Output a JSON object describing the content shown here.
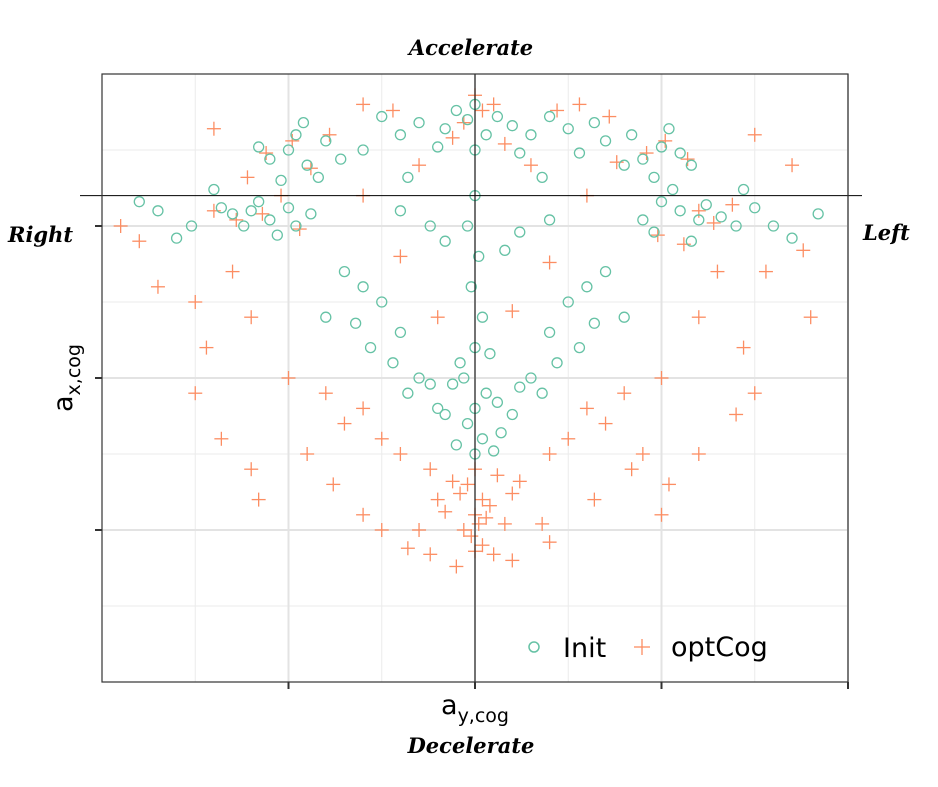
{
  "chart_data": {
    "type": "scatter",
    "x_label_main": "a",
    "x_label_sub": "y,cog",
    "y_label_main": "a",
    "y_label_sub": "x,cog",
    "annotations": {
      "top": "Accelerate",
      "bottom": "Decelerate",
      "left": "Right",
      "right": "Left"
    },
    "xlim": [
      -1.0,
      1.0
    ],
    "ylim": [
      -1.0,
      1.0
    ],
    "x_ticks": [
      -0.5,
      0.0,
      0.5,
      1.0
    ],
    "y_ticks": [
      0.5,
      0.0,
      -0.5
    ],
    "x_tick_labels": [],
    "y_tick_labels": [],
    "grid": true,
    "reference_lines": {
      "x": 0.0,
      "y": 0.6
    },
    "legend_position": "bottom-right",
    "series": [
      {
        "name": "Init",
        "marker": "open-circle",
        "color": "#66c2a5",
        "points": [
          [
            -0.55,
            0.72
          ],
          [
            -0.5,
            0.75
          ],
          [
            -0.45,
            0.7
          ],
          [
            -0.4,
            0.78
          ],
          [
            -0.48,
            0.8
          ],
          [
            -0.52,
            0.65
          ],
          [
            -0.42,
            0.66
          ],
          [
            -0.36,
            0.72
          ],
          [
            -0.58,
            0.76
          ],
          [
            -0.46,
            0.84
          ],
          [
            -0.6,
            0.55
          ],
          [
            -0.55,
            0.52
          ],
          [
            -0.5,
            0.56
          ],
          [
            -0.62,
            0.5
          ],
          [
            -0.58,
            0.58
          ],
          [
            -0.48,
            0.5
          ],
          [
            -0.65,
            0.54
          ],
          [
            -0.53,
            0.47
          ],
          [
            -0.44,
            0.54
          ],
          [
            -0.68,
            0.56
          ],
          [
            0.45,
            0.72
          ],
          [
            0.5,
            0.76
          ],
          [
            0.4,
            0.7
          ],
          [
            0.55,
            0.74
          ],
          [
            0.42,
            0.8
          ],
          [
            0.35,
            0.78
          ],
          [
            0.48,
            0.66
          ],
          [
            0.58,
            0.7
          ],
          [
            0.32,
            0.84
          ],
          [
            0.52,
            0.82
          ],
          [
            0.55,
            0.55
          ],
          [
            0.6,
            0.52
          ],
          [
            0.5,
            0.58
          ],
          [
            0.62,
            0.57
          ],
          [
            0.48,
            0.48
          ],
          [
            0.66,
            0.53
          ],
          [
            0.58,
            0.45
          ],
          [
            0.7,
            0.5
          ],
          [
            0.45,
            0.52
          ],
          [
            0.53,
            0.62
          ],
          [
            0.0,
            0.9
          ],
          [
            -0.02,
            0.85
          ],
          [
            0.03,
            0.8
          ],
          [
            -0.05,
            0.88
          ],
          [
            0.06,
            0.86
          ],
          [
            -0.08,
            0.82
          ],
          [
            0.1,
            0.83
          ],
          [
            0.0,
            0.75
          ],
          [
            -0.1,
            0.76
          ],
          [
            0.12,
            0.74
          ],
          [
            -0.25,
            0.86
          ],
          [
            -0.2,
            0.8
          ],
          [
            -0.15,
            0.84
          ],
          [
            0.2,
            0.86
          ],
          [
            0.25,
            0.82
          ],
          [
            0.15,
            0.8
          ],
          [
            -0.3,
            0.75
          ],
          [
            0.28,
            0.74
          ],
          [
            -0.18,
            0.66
          ],
          [
            0.18,
            0.66
          ],
          [
            0.0,
            0.6
          ],
          [
            -0.02,
            0.5
          ],
          [
            0.01,
            0.4
          ],
          [
            -0.01,
            0.3
          ],
          [
            0.02,
            0.2
          ],
          [
            0.0,
            0.1
          ],
          [
            -0.03,
            0.0
          ],
          [
            0.03,
            -0.05
          ],
          [
            0.0,
            -0.1
          ],
          [
            -0.02,
            -0.15
          ],
          [
            0.02,
            -0.2
          ],
          [
            0.0,
            -0.25
          ],
          [
            -0.04,
            0.05
          ],
          [
            0.04,
            0.08
          ],
          [
            -0.06,
            -0.02
          ],
          [
            0.06,
            -0.08
          ],
          [
            -0.08,
            -0.12
          ],
          [
            0.07,
            -0.18
          ],
          [
            -0.05,
            -0.22
          ],
          [
            0.05,
            -0.24
          ],
          [
            -0.3,
            0.3
          ],
          [
            -0.25,
            0.25
          ],
          [
            -0.2,
            0.15
          ],
          [
            -0.35,
            0.35
          ],
          [
            -0.28,
            0.1
          ],
          [
            -0.22,
            0.05
          ],
          [
            -0.15,
            0.0
          ],
          [
            -0.4,
            0.2
          ],
          [
            -0.32,
            0.18
          ],
          [
            -0.18,
            -0.05
          ],
          [
            0.3,
            0.3
          ],
          [
            0.25,
            0.25
          ],
          [
            0.2,
            0.15
          ],
          [
            0.35,
            0.35
          ],
          [
            0.28,
            0.1
          ],
          [
            0.22,
            0.05
          ],
          [
            0.15,
            0.0
          ],
          [
            0.4,
            0.2
          ],
          [
            0.32,
            0.18
          ],
          [
            0.18,
            -0.05
          ],
          [
            -0.1,
            -0.1
          ],
          [
            0.1,
            -0.12
          ],
          [
            -0.12,
            -0.02
          ],
          [
            0.12,
            -0.03
          ],
          [
            -0.08,
            0.45
          ],
          [
            0.08,
            0.42
          ],
          [
            -0.12,
            0.5
          ],
          [
            0.12,
            0.48
          ],
          [
            -0.2,
            0.55
          ],
          [
            0.2,
            0.52
          ],
          [
            -0.85,
            0.55
          ],
          [
            -0.76,
            0.5
          ],
          [
            -0.7,
            0.62
          ],
          [
            -0.8,
            0.46
          ],
          [
            0.8,
            0.5
          ],
          [
            0.75,
            0.56
          ],
          [
            0.85,
            0.46
          ],
          [
            0.92,
            0.54
          ],
          [
            0.72,
            0.62
          ],
          [
            -0.9,
            0.58
          ]
        ]
      },
      {
        "name": "optCog",
        "marker": "plus",
        "color": "#fc8d62",
        "points": [
          [
            -0.56,
            0.74
          ],
          [
            -0.49,
            0.78
          ],
          [
            -0.44,
            0.69
          ],
          [
            -0.61,
            0.66
          ],
          [
            -0.39,
            0.8
          ],
          [
            -0.57,
            0.54
          ],
          [
            -0.64,
            0.52
          ],
          [
            -0.47,
            0.49
          ],
          [
            -0.7,
            0.55
          ],
          [
            -0.52,
            0.6
          ],
          [
            0.46,
            0.74
          ],
          [
            0.51,
            0.78
          ],
          [
            0.38,
            0.71
          ],
          [
            0.57,
            0.72
          ],
          [
            0.6,
            0.55
          ],
          [
            0.64,
            0.51
          ],
          [
            0.49,
            0.47
          ],
          [
            0.69,
            0.57
          ],
          [
            0.56,
            0.44
          ],
          [
            0.36,
            0.86
          ],
          [
            0.0,
            0.93
          ],
          [
            0.02,
            0.88
          ],
          [
            -0.03,
            0.84
          ],
          [
            0.05,
            0.9
          ],
          [
            -0.06,
            0.79
          ],
          [
            0.08,
            0.77
          ],
          [
            -0.22,
            0.88
          ],
          [
            0.22,
            0.88
          ],
          [
            -0.3,
            0.9
          ],
          [
            0.28,
            0.9
          ],
          [
            0.0,
            -0.3
          ],
          [
            -0.02,
            -0.35
          ],
          [
            0.02,
            -0.4
          ],
          [
            0.0,
            -0.45
          ],
          [
            -0.04,
            -0.38
          ],
          [
            0.04,
            -0.42
          ],
          [
            -0.06,
            -0.34
          ],
          [
            0.06,
            -0.32
          ],
          [
            0.01,
            -0.48
          ],
          [
            -0.01,
            -0.52
          ],
          [
            0.02,
            -0.55
          ],
          [
            -0.03,
            -0.5
          ],
          [
            0.03,
            -0.46
          ],
          [
            -0.08,
            -0.44
          ],
          [
            0.08,
            -0.48
          ],
          [
            -0.1,
            -0.4
          ],
          [
            0.1,
            -0.38
          ],
          [
            -0.12,
            -0.3
          ],
          [
            0.12,
            -0.34
          ],
          [
            0.0,
            -0.57
          ],
          [
            -0.25,
            -0.2
          ],
          [
            -0.3,
            -0.1
          ],
          [
            -0.35,
            -0.15
          ],
          [
            -0.2,
            -0.25
          ],
          [
            -0.4,
            -0.05
          ],
          [
            0.25,
            -0.2
          ],
          [
            0.3,
            -0.1
          ],
          [
            0.35,
            -0.15
          ],
          [
            0.2,
            -0.25
          ],
          [
            0.4,
            -0.05
          ],
          [
            -0.45,
            -0.25
          ],
          [
            0.45,
            -0.25
          ],
          [
            -0.5,
            0.0
          ],
          [
            0.5,
            0.0
          ],
          [
            -0.6,
            0.2
          ],
          [
            0.6,
            0.2
          ],
          [
            -0.65,
            0.35
          ],
          [
            0.65,
            0.35
          ],
          [
            -0.72,
            0.1
          ],
          [
            0.72,
            0.1
          ],
          [
            -0.75,
            -0.05
          ],
          [
            0.75,
            -0.05
          ],
          [
            -0.68,
            -0.2
          ],
          [
            0.7,
            -0.12
          ],
          [
            -0.38,
            -0.35
          ],
          [
            0.42,
            -0.3
          ],
          [
            -0.3,
            -0.45
          ],
          [
            0.32,
            -0.4
          ],
          [
            -0.15,
            -0.5
          ],
          [
            0.18,
            -0.48
          ],
          [
            -0.9,
            0.45
          ],
          [
            0.88,
            0.42
          ],
          [
            -0.95,
            0.5
          ],
          [
            0.9,
            0.2
          ],
          [
            -0.75,
            0.25
          ],
          [
            0.78,
            0.35
          ],
          [
            0.6,
            -0.25
          ],
          [
            -0.6,
            -0.3
          ],
          [
            0.85,
            0.7
          ],
          [
            -0.7,
            0.82
          ],
          [
            -0.12,
            -0.58
          ],
          [
            0.1,
            -0.6
          ],
          [
            -0.05,
            -0.62
          ],
          [
            0.05,
            -0.58
          ],
          [
            -0.18,
            -0.56
          ],
          [
            0.2,
            -0.54
          ],
          [
            -0.25,
            -0.5
          ],
          [
            0.5,
            -0.45
          ],
          [
            -0.58,
            -0.4
          ],
          [
            0.52,
            -0.35
          ],
          [
            -0.3,
            0.6
          ],
          [
            0.3,
            0.6
          ],
          [
            -0.15,
            0.7
          ],
          [
            0.15,
            0.7
          ],
          [
            -0.1,
            0.2
          ],
          [
            0.1,
            0.22
          ],
          [
            -0.2,
            0.4
          ],
          [
            0.2,
            0.38
          ],
          [
            -0.85,
            0.3
          ],
          [
            0.75,
            0.8
          ]
        ]
      }
    ]
  }
}
